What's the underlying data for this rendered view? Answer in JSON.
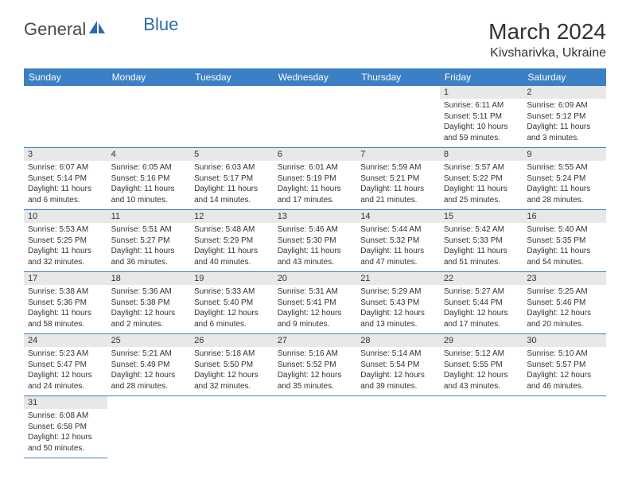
{
  "brand": {
    "part1": "General",
    "part2": "Blue"
  },
  "title": "March 2024",
  "location": "Kivsharivka, Ukraine",
  "colors": {
    "header_bg": "#3b7fc4",
    "header_text": "#ffffff",
    "daynum_bg": "#e8e8e8",
    "row_divider": "#3b7fc4",
    "text": "#333333",
    "brand_gray": "#4a4a4a",
    "brand_blue": "#2a6bb0"
  },
  "weekdays": [
    "Sunday",
    "Monday",
    "Tuesday",
    "Wednesday",
    "Thursday",
    "Friday",
    "Saturday"
  ],
  "grid": [
    [
      {
        "day": "",
        "sunrise": "",
        "sunset": "",
        "daylight": ""
      },
      {
        "day": "",
        "sunrise": "",
        "sunset": "",
        "daylight": ""
      },
      {
        "day": "",
        "sunrise": "",
        "sunset": "",
        "daylight": ""
      },
      {
        "day": "",
        "sunrise": "",
        "sunset": "",
        "daylight": ""
      },
      {
        "day": "",
        "sunrise": "",
        "sunset": "",
        "daylight": ""
      },
      {
        "day": "1",
        "sunrise": "Sunrise: 6:11 AM",
        "sunset": "Sunset: 5:11 PM",
        "daylight": "Daylight: 10 hours and 59 minutes."
      },
      {
        "day": "2",
        "sunrise": "Sunrise: 6:09 AM",
        "sunset": "Sunset: 5:12 PM",
        "daylight": "Daylight: 11 hours and 3 minutes."
      }
    ],
    [
      {
        "day": "3",
        "sunrise": "Sunrise: 6:07 AM",
        "sunset": "Sunset: 5:14 PM",
        "daylight": "Daylight: 11 hours and 6 minutes."
      },
      {
        "day": "4",
        "sunrise": "Sunrise: 6:05 AM",
        "sunset": "Sunset: 5:16 PM",
        "daylight": "Daylight: 11 hours and 10 minutes."
      },
      {
        "day": "5",
        "sunrise": "Sunrise: 6:03 AM",
        "sunset": "Sunset: 5:17 PM",
        "daylight": "Daylight: 11 hours and 14 minutes."
      },
      {
        "day": "6",
        "sunrise": "Sunrise: 6:01 AM",
        "sunset": "Sunset: 5:19 PM",
        "daylight": "Daylight: 11 hours and 17 minutes."
      },
      {
        "day": "7",
        "sunrise": "Sunrise: 5:59 AM",
        "sunset": "Sunset: 5:21 PM",
        "daylight": "Daylight: 11 hours and 21 minutes."
      },
      {
        "day": "8",
        "sunrise": "Sunrise: 5:57 AM",
        "sunset": "Sunset: 5:22 PM",
        "daylight": "Daylight: 11 hours and 25 minutes."
      },
      {
        "day": "9",
        "sunrise": "Sunrise: 5:55 AM",
        "sunset": "Sunset: 5:24 PM",
        "daylight": "Daylight: 11 hours and 28 minutes."
      }
    ],
    [
      {
        "day": "10",
        "sunrise": "Sunrise: 5:53 AM",
        "sunset": "Sunset: 5:25 PM",
        "daylight": "Daylight: 11 hours and 32 minutes."
      },
      {
        "day": "11",
        "sunrise": "Sunrise: 5:51 AM",
        "sunset": "Sunset: 5:27 PM",
        "daylight": "Daylight: 11 hours and 36 minutes."
      },
      {
        "day": "12",
        "sunrise": "Sunrise: 5:48 AM",
        "sunset": "Sunset: 5:29 PM",
        "daylight": "Daylight: 11 hours and 40 minutes."
      },
      {
        "day": "13",
        "sunrise": "Sunrise: 5:46 AM",
        "sunset": "Sunset: 5:30 PM",
        "daylight": "Daylight: 11 hours and 43 minutes."
      },
      {
        "day": "14",
        "sunrise": "Sunrise: 5:44 AM",
        "sunset": "Sunset: 5:32 PM",
        "daylight": "Daylight: 11 hours and 47 minutes."
      },
      {
        "day": "15",
        "sunrise": "Sunrise: 5:42 AM",
        "sunset": "Sunset: 5:33 PM",
        "daylight": "Daylight: 11 hours and 51 minutes."
      },
      {
        "day": "16",
        "sunrise": "Sunrise: 5:40 AM",
        "sunset": "Sunset: 5:35 PM",
        "daylight": "Daylight: 11 hours and 54 minutes."
      }
    ],
    [
      {
        "day": "17",
        "sunrise": "Sunrise: 5:38 AM",
        "sunset": "Sunset: 5:36 PM",
        "daylight": "Daylight: 11 hours and 58 minutes."
      },
      {
        "day": "18",
        "sunrise": "Sunrise: 5:36 AM",
        "sunset": "Sunset: 5:38 PM",
        "daylight": "Daylight: 12 hours and 2 minutes."
      },
      {
        "day": "19",
        "sunrise": "Sunrise: 5:33 AM",
        "sunset": "Sunset: 5:40 PM",
        "daylight": "Daylight: 12 hours and 6 minutes."
      },
      {
        "day": "20",
        "sunrise": "Sunrise: 5:31 AM",
        "sunset": "Sunset: 5:41 PM",
        "daylight": "Daylight: 12 hours and 9 minutes."
      },
      {
        "day": "21",
        "sunrise": "Sunrise: 5:29 AM",
        "sunset": "Sunset: 5:43 PM",
        "daylight": "Daylight: 12 hours and 13 minutes."
      },
      {
        "day": "22",
        "sunrise": "Sunrise: 5:27 AM",
        "sunset": "Sunset: 5:44 PM",
        "daylight": "Daylight: 12 hours and 17 minutes."
      },
      {
        "day": "23",
        "sunrise": "Sunrise: 5:25 AM",
        "sunset": "Sunset: 5:46 PM",
        "daylight": "Daylight: 12 hours and 20 minutes."
      }
    ],
    [
      {
        "day": "24",
        "sunrise": "Sunrise: 5:23 AM",
        "sunset": "Sunset: 5:47 PM",
        "daylight": "Daylight: 12 hours and 24 minutes."
      },
      {
        "day": "25",
        "sunrise": "Sunrise: 5:21 AM",
        "sunset": "Sunset: 5:49 PM",
        "daylight": "Daylight: 12 hours and 28 minutes."
      },
      {
        "day": "26",
        "sunrise": "Sunrise: 5:18 AM",
        "sunset": "Sunset: 5:50 PM",
        "daylight": "Daylight: 12 hours and 32 minutes."
      },
      {
        "day": "27",
        "sunrise": "Sunrise: 5:16 AM",
        "sunset": "Sunset: 5:52 PM",
        "daylight": "Daylight: 12 hours and 35 minutes."
      },
      {
        "day": "28",
        "sunrise": "Sunrise: 5:14 AM",
        "sunset": "Sunset: 5:54 PM",
        "daylight": "Daylight: 12 hours and 39 minutes."
      },
      {
        "day": "29",
        "sunrise": "Sunrise: 5:12 AM",
        "sunset": "Sunset: 5:55 PM",
        "daylight": "Daylight: 12 hours and 43 minutes."
      },
      {
        "day": "30",
        "sunrise": "Sunrise: 5:10 AM",
        "sunset": "Sunset: 5:57 PM",
        "daylight": "Daylight: 12 hours and 46 minutes."
      }
    ],
    [
      {
        "day": "31",
        "sunrise": "Sunrise: 6:08 AM",
        "sunset": "Sunset: 6:58 PM",
        "daylight": "Daylight: 12 hours and 50 minutes."
      },
      {
        "day": "",
        "sunrise": "",
        "sunset": "",
        "daylight": ""
      },
      {
        "day": "",
        "sunrise": "",
        "sunset": "",
        "daylight": ""
      },
      {
        "day": "",
        "sunrise": "",
        "sunset": "",
        "daylight": ""
      },
      {
        "day": "",
        "sunrise": "",
        "sunset": "",
        "daylight": ""
      },
      {
        "day": "",
        "sunrise": "",
        "sunset": "",
        "daylight": ""
      },
      {
        "day": "",
        "sunrise": "",
        "sunset": "",
        "daylight": ""
      }
    ]
  ]
}
